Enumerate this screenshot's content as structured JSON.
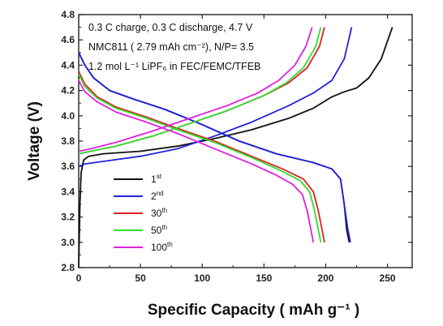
{
  "chart_data": {
    "type": "line",
    "xlabel": "Specific Capacity ( mAh g⁻¹ )",
    "ylabel": "Voltage (V)",
    "xlim": [
      0,
      270
    ],
    "ylim": [
      2.8,
      4.8
    ],
    "xticks": [
      0,
      50,
      100,
      150,
      200,
      250
    ],
    "yticks": [
      2.8,
      3.0,
      3.2,
      3.4,
      3.6,
      3.8,
      4.0,
      4.2,
      4.4,
      4.6,
      4.8
    ],
    "annotations": [
      "0.3 C charge, 0.3 C discharge, 4.7 V",
      "NMC811 ( 2.79 mAh cm⁻²), N/P= 3.5",
      "1.2 mol L⁻¹ LiPF₆ in FEC/FEMC/TFEB"
    ],
    "legend_position": "bottom-left",
    "series": [
      {
        "name": "1st",
        "color": "#111111",
        "charge": [
          [
            0,
            2.8
          ],
          [
            1,
            3.3
          ],
          [
            2,
            3.55
          ],
          [
            4,
            3.65
          ],
          [
            8,
            3.68
          ],
          [
            20,
            3.7
          ],
          [
            50,
            3.72
          ],
          [
            80,
            3.76
          ],
          [
            110,
            3.82
          ],
          [
            140,
            3.89
          ],
          [
            170,
            3.98
          ],
          [
            190,
            4.06
          ],
          [
            205,
            4.15
          ],
          [
            215,
            4.19
          ],
          [
            225,
            4.22
          ],
          [
            235,
            4.3
          ],
          [
            245,
            4.45
          ],
          [
            254,
            4.7
          ]
        ],
        "discharge": [
          [
            0,
            4.5
          ],
          [
            5,
            4.4
          ],
          [
            12,
            4.3
          ],
          [
            25,
            4.2
          ],
          [
            45,
            4.13
          ],
          [
            70,
            4.05
          ],
          [
            100,
            3.93
          ],
          [
            130,
            3.8
          ],
          [
            160,
            3.7
          ],
          [
            190,
            3.63
          ],
          [
            205,
            3.58
          ],
          [
            212,
            3.5
          ],
          [
            215,
            3.3
          ],
          [
            217,
            3.1
          ],
          [
            219,
            3.0
          ]
        ]
      },
      {
        "name": "2nd",
        "color": "#2222dd",
        "charge": [
          [
            0,
            3.6
          ],
          [
            5,
            3.62
          ],
          [
            20,
            3.64
          ],
          [
            50,
            3.68
          ],
          [
            80,
            3.74
          ],
          [
            110,
            3.84
          ],
          [
            140,
            3.95
          ],
          [
            170,
            4.08
          ],
          [
            190,
            4.18
          ],
          [
            205,
            4.28
          ],
          [
            215,
            4.45
          ],
          [
            221,
            4.7
          ]
        ],
        "discharge": [
          [
            0,
            4.5
          ],
          [
            5,
            4.4
          ],
          [
            12,
            4.3
          ],
          [
            25,
            4.2
          ],
          [
            45,
            4.13
          ],
          [
            70,
            4.05
          ],
          [
            100,
            3.93
          ],
          [
            130,
            3.8
          ],
          [
            160,
            3.7
          ],
          [
            190,
            3.63
          ],
          [
            205,
            3.58
          ],
          [
            212,
            3.5
          ],
          [
            215,
            3.3
          ],
          [
            218,
            3.1
          ],
          [
            220,
            3.0
          ]
        ]
      },
      {
        "name": "30th",
        "color": "#dd2222",
        "charge": [
          [
            0,
            3.7
          ],
          [
            10,
            3.72
          ],
          [
            30,
            3.76
          ],
          [
            60,
            3.84
          ],
          [
            90,
            3.94
          ],
          [
            120,
            4.04
          ],
          [
            150,
            4.16
          ],
          [
            170,
            4.26
          ],
          [
            185,
            4.38
          ],
          [
            195,
            4.55
          ],
          [
            199,
            4.7
          ]
        ],
        "discharge": [
          [
            0,
            4.35
          ],
          [
            5,
            4.25
          ],
          [
            15,
            4.15
          ],
          [
            30,
            4.07
          ],
          [
            55,
            3.99
          ],
          [
            80,
            3.9
          ],
          [
            110,
            3.8
          ],
          [
            140,
            3.68
          ],
          [
            165,
            3.58
          ],
          [
            182,
            3.5
          ],
          [
            190,
            3.4
          ],
          [
            194,
            3.25
          ],
          [
            197,
            3.1
          ],
          [
            199,
            3.0
          ]
        ]
      },
      {
        "name": "50th",
        "color": "#33dd33",
        "charge": [
          [
            0,
            3.7
          ],
          [
            10,
            3.72
          ],
          [
            30,
            3.76
          ],
          [
            60,
            3.84
          ],
          [
            90,
            3.94
          ],
          [
            120,
            4.04
          ],
          [
            150,
            4.16
          ],
          [
            168,
            4.26
          ],
          [
            182,
            4.38
          ],
          [
            192,
            4.55
          ],
          [
            196,
            4.7
          ]
        ],
        "discharge": [
          [
            0,
            4.33
          ],
          [
            5,
            4.23
          ],
          [
            15,
            4.14
          ],
          [
            30,
            4.06
          ],
          [
            55,
            3.98
          ],
          [
            80,
            3.89
          ],
          [
            110,
            3.79
          ],
          [
            140,
            3.67
          ],
          [
            163,
            3.57
          ],
          [
            179,
            3.49
          ],
          [
            187,
            3.4
          ],
          [
            191,
            3.25
          ],
          [
            194,
            3.1
          ],
          [
            196,
            3.0
          ]
        ]
      },
      {
        "name": "100th",
        "color": "#dd22dd",
        "charge": [
          [
            0,
            3.72
          ],
          [
            10,
            3.74
          ],
          [
            30,
            3.79
          ],
          [
            60,
            3.88
          ],
          [
            90,
            3.98
          ],
          [
            120,
            4.08
          ],
          [
            145,
            4.18
          ],
          [
            162,
            4.28
          ],
          [
            175,
            4.4
          ],
          [
            184,
            4.55
          ],
          [
            189,
            4.7
          ]
        ],
        "discharge": [
          [
            0,
            4.28
          ],
          [
            5,
            4.19
          ],
          [
            15,
            4.11
          ],
          [
            30,
            4.03
          ],
          [
            55,
            3.95
          ],
          [
            80,
            3.86
          ],
          [
            110,
            3.74
          ],
          [
            140,
            3.62
          ],
          [
            160,
            3.53
          ],
          [
            173,
            3.46
          ],
          [
            181,
            3.38
          ],
          [
            185,
            3.25
          ],
          [
            188,
            3.1
          ],
          [
            190,
            3.0
          ]
        ]
      }
    ]
  }
}
